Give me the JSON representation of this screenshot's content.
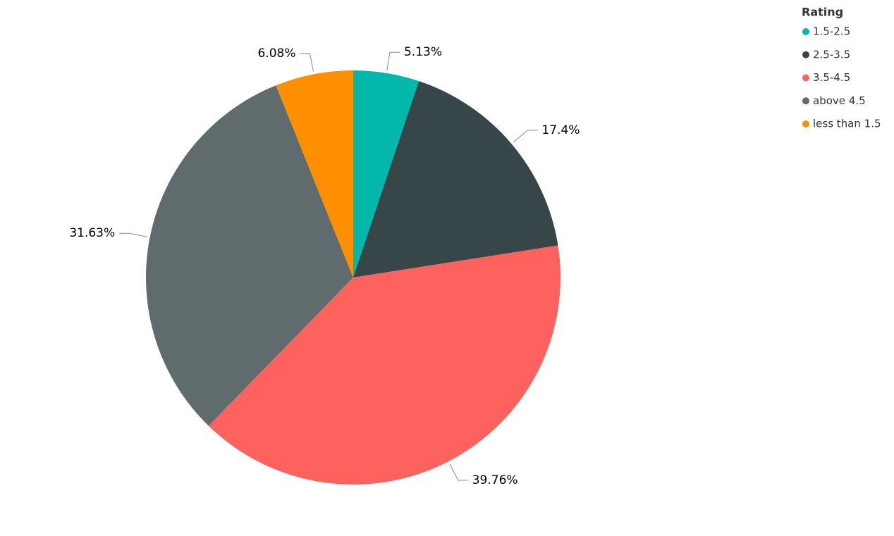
{
  "chart_data": {
    "type": "pie",
    "legend_title": "Rating",
    "categories": [
      "1.5-2.5",
      "2.5-3.5",
      "3.5-4.5",
      "above 4.5",
      "less than 1.5"
    ],
    "values": [
      5.13,
      17.4,
      39.76,
      31.63,
      6.08
    ],
    "value_labels": [
      "5.13%",
      "17.4%",
      "39.76%",
      "31.63%",
      "6.08%"
    ],
    "colors": [
      "#01b8aa",
      "#374649",
      "#fd625e",
      "#5f6b6d",
      "#fe9000"
    ],
    "legend": "top-right"
  }
}
